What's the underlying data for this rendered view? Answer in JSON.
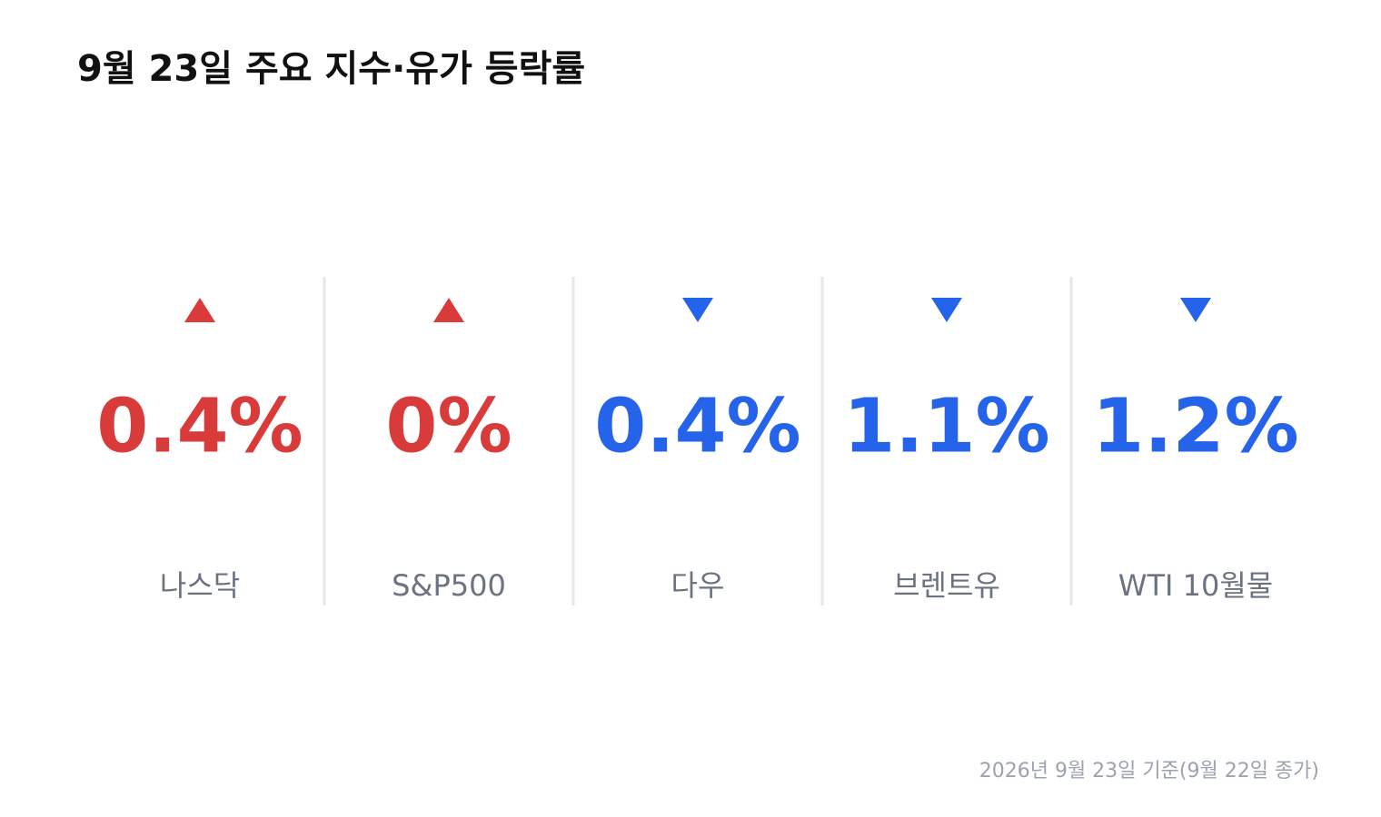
{
  "title": "9월 23일 주요 지수·유가 등락률",
  "items": [
    {
      "label": "나스닥",
      "value": "0.4%",
      "direction": "up",
      "color": "#d93a3a"
    },
    {
      "label": "S&P500",
      "value": "0%",
      "direction": "up",
      "color": "#d93a3a"
    },
    {
      "label": "다우",
      "value": "0.4%",
      "direction": "down",
      "color": "#2563eb"
    },
    {
      "label": "브렌트유",
      "value": "1.1%",
      "direction": "down",
      "color": "#2563eb"
    },
    {
      "label": "WTI 10월물",
      "value": "1.2%",
      "direction": "down",
      "color": "#2563eb"
    }
  ],
  "footnote": "2026년 9월 23일 기준(9월 22일 종가)"
}
